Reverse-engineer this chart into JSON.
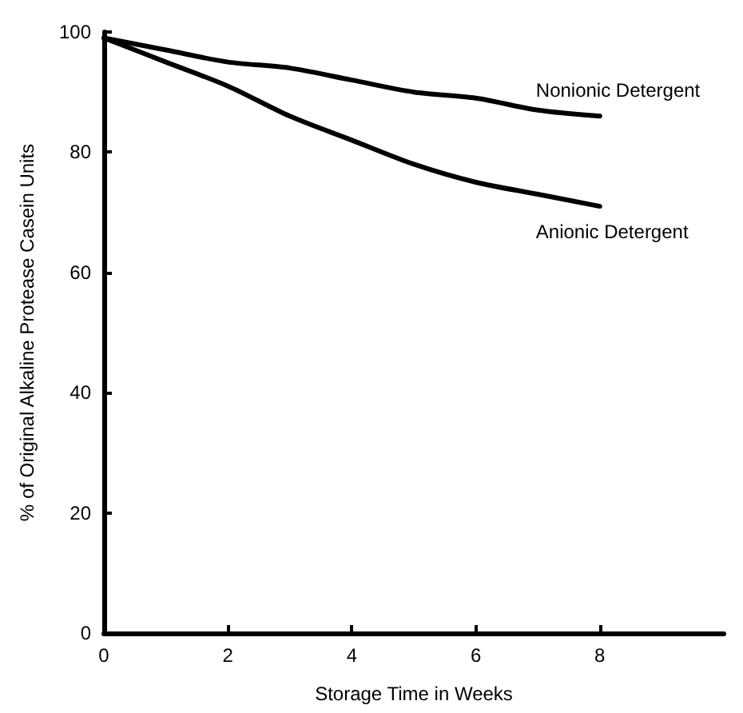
{
  "chart_data": {
    "type": "line",
    "xlabel": "Storage Time in Weeks",
    "ylabel": "% of Original Alkaline Protease Casein Units",
    "x": [
      0,
      1,
      2,
      3,
      4,
      5,
      6,
      7,
      8
    ],
    "series": [
      {
        "name": "Nonionic Detergent",
        "color": "#000000",
        "values": [
          99,
          97,
          95,
          94,
          92,
          90,
          89,
          87,
          86
        ]
      },
      {
        "name": "Anionic Detergent",
        "color": "#000000",
        "values": [
          99,
          95,
          91,
          86,
          82,
          78,
          75,
          73,
          71
        ]
      }
    ],
    "xlim": [
      0,
      10
    ],
    "xticks": [
      0,
      2,
      4,
      6,
      8
    ],
    "ylim": [
      0,
      100
    ],
    "yticks": [
      0,
      20,
      40,
      60,
      80,
      100
    ],
    "grid": false,
    "legend": false,
    "marker": "none",
    "line_style": "solid"
  }
}
